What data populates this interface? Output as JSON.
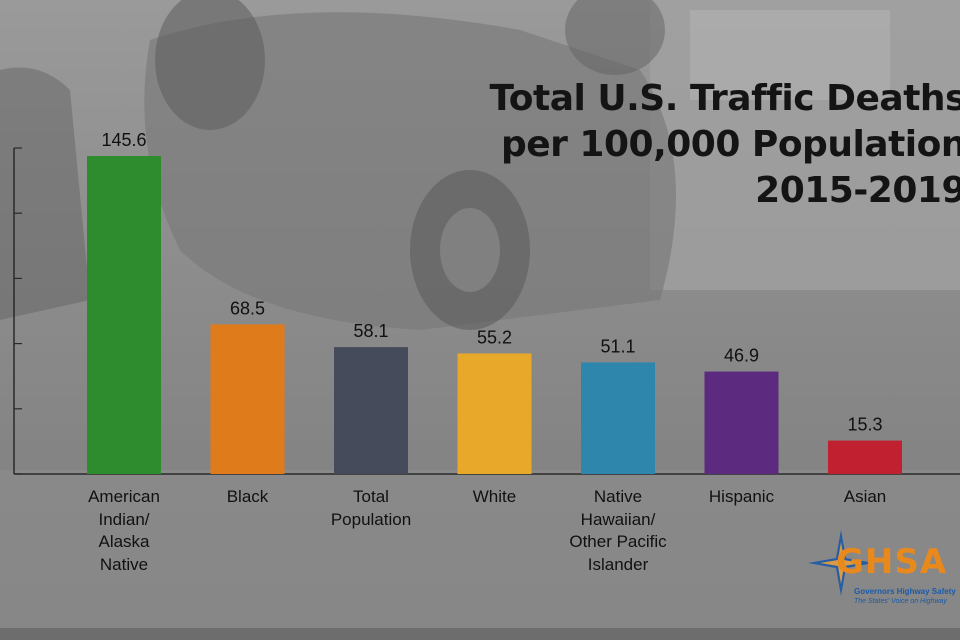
{
  "title_lines": [
    "Total U.S. Traffic Deaths",
    "per 100,000 Population",
    "2015-2019"
  ],
  "chart_data": {
    "type": "bar",
    "categories": [
      "American Indian/ Alaska Native",
      "Black",
      "Total Population",
      "White",
      "Native Hawaiian/ Other Pacific Islander",
      "Hispanic",
      "Asian"
    ],
    "category_lines": [
      [
        "American",
        "Indian/",
        "Alaska",
        "Native"
      ],
      [
        "Black"
      ],
      [
        "Total",
        "Population"
      ],
      [
        "White"
      ],
      [
        "Native",
        "Hawaiian/",
        "Other Pacific",
        "Islander"
      ],
      [
        "Hispanic"
      ],
      [
        "Asian"
      ]
    ],
    "values": [
      145.6,
      68.5,
      58.1,
      55.2,
      51.1,
      46.9,
      15.3
    ],
    "value_labels": [
      "145.6",
      "68.5",
      "58.1",
      "55.2",
      "51.1",
      "46.9",
      "15.3"
    ],
    "colors": [
      "#2e8b2e",
      "#e07b1c",
      "#454b5a",
      "#e8a92a",
      "#2e86ad",
      "#5c2a7e",
      "#c0202f"
    ],
    "ylim": [
      0,
      150
    ],
    "grid": false,
    "y_ticks_labeled": false
  },
  "logo": {
    "name": "GHSA",
    "line1": "Governors Highway Safety",
    "line2": "The States' Voice on Highway"
  }
}
